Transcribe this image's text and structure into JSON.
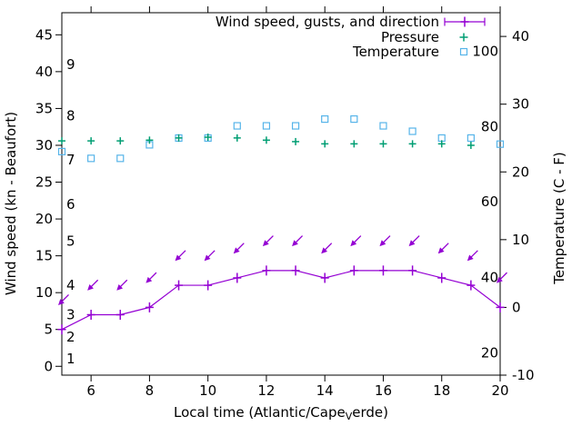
{
  "window": {
    "background": "#ffffff"
  },
  "chart_data": {
    "type": "line",
    "title": "",
    "legend": [
      {
        "label": "Wind speed, gusts, and direction",
        "series": "wind",
        "sample": "errorbar-plus"
      },
      {
        "label": "Pressure",
        "series": "pressure",
        "sample": "plus"
      },
      {
        "label": "Temperature",
        "series": "temperature",
        "sample": "open-square"
      }
    ],
    "colors": {
      "wind": "#9400d3",
      "pressure": "#009e73",
      "temperature": "#56b4e9",
      "axis": "#000000",
      "background": "#ffffff"
    },
    "xlabel": {
      "pre": "Local time (Atlantic/Cape",
      "sub": "V",
      "post": "erde)"
    },
    "ylabel_left": "Wind speed (kn - Beaufort)",
    "ylabel_right": "Temperature (C - F)",
    "xlim": [
      5,
      20
    ],
    "ylim_left": [
      -1.2,
      48.0
    ],
    "ylim_right": [
      -10,
      43.5
    ],
    "x_ticks": [
      6,
      8,
      10,
      12,
      14,
      16,
      18,
      20
    ],
    "y_left_ticks": [
      0,
      5,
      10,
      15,
      20,
      25,
      30,
      35,
      40,
      45
    ],
    "y_right_ticks": [
      -10,
      0,
      10,
      20,
      30,
      40
    ],
    "beaufort_labels": [
      {
        "label": "1",
        "kn": 1
      },
      {
        "label": "2",
        "kn": 4
      },
      {
        "label": "3",
        "kn": 7
      },
      {
        "label": "4",
        "kn": 11
      },
      {
        "label": "5",
        "kn": 17
      },
      {
        "label": "6",
        "kn": 22
      },
      {
        "label": "7",
        "kn": 28
      },
      {
        "label": "8",
        "kn": 34
      },
      {
        "label": "9",
        "kn": 41
      }
    ],
    "fahrenheit_labels": [
      {
        "label": "20",
        "c": -6.7
      },
      {
        "label": "40",
        "c": 4.4
      },
      {
        "label": "60",
        "c": 15.6
      },
      {
        "label": "80",
        "c": 26.7
      },
      {
        "label": "100",
        "c": 37.8
      }
    ],
    "x_hours": [
      5,
      6,
      7,
      8,
      9,
      10,
      11,
      12,
      13,
      14,
      15,
      16,
      17,
      18,
      19,
      20
    ],
    "wind_speed_kn": [
      5,
      7,
      7,
      8,
      11,
      11,
      12,
      13,
      13,
      12,
      13,
      13,
      13,
      12,
      11,
      8
    ],
    "wind_gusts_note": "gust errorbars coincide with wind speed points",
    "wind_direction_arrows": {
      "pointing": "southwest",
      "offset_kn_above_speed": 3.3
    },
    "pressure_x_hours": [
      5,
      6,
      7,
      8,
      9,
      10,
      11,
      12,
      13,
      14,
      15,
      16,
      17,
      18,
      19
    ],
    "pressure_plotted_left_axis": [
      30.6,
      30.6,
      30.6,
      30.7,
      31.0,
      31.1,
      31.0,
      30.7,
      30.5,
      30.2,
      30.2,
      30.2,
      30.2,
      30.2,
      30.0
    ],
    "temperature_c": [
      23.0,
      22.0,
      22.0,
      24.0,
      25.0,
      25.0,
      26.8,
      26.8,
      26.8,
      27.8,
      27.8,
      26.8,
      26.0,
      25.0,
      25.0,
      24.1
    ]
  }
}
